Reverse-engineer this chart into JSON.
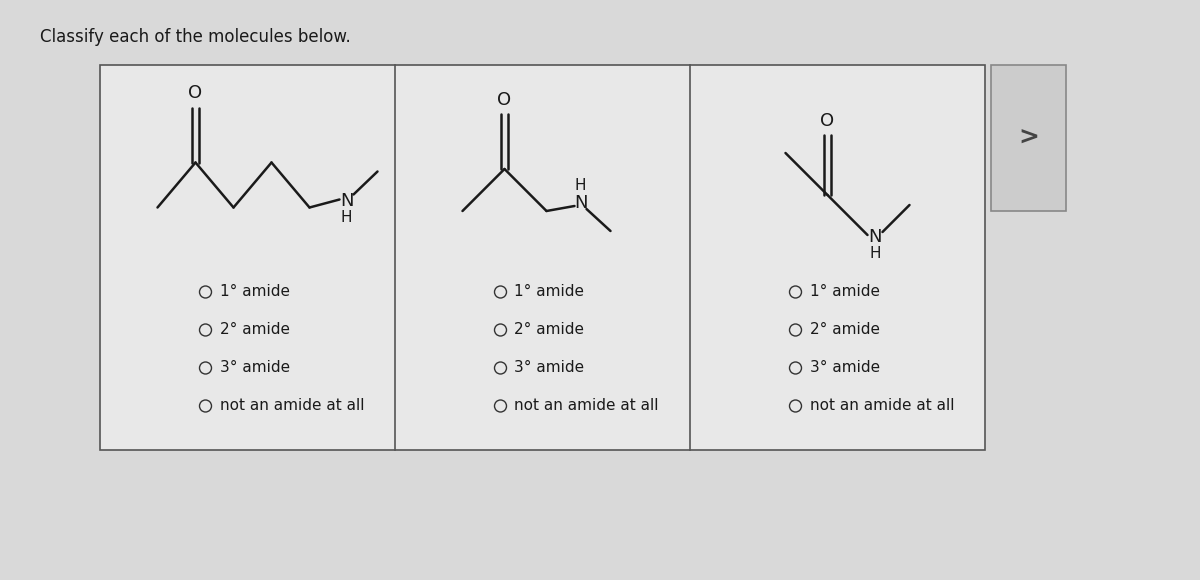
{
  "title": "Classify each of the molecules below.",
  "bg_color": "#d9d9d9",
  "box_bg": "#e8e8e8",
  "text_color": "#1a1a1a",
  "title_fontsize": 12,
  "option_fontsize": 11,
  "options": [
    "1° amide",
    "2° amide",
    "3° amide",
    "not an amide at all"
  ],
  "line_color": "#1a1a1a",
  "arrow_bg": "#cccccc"
}
